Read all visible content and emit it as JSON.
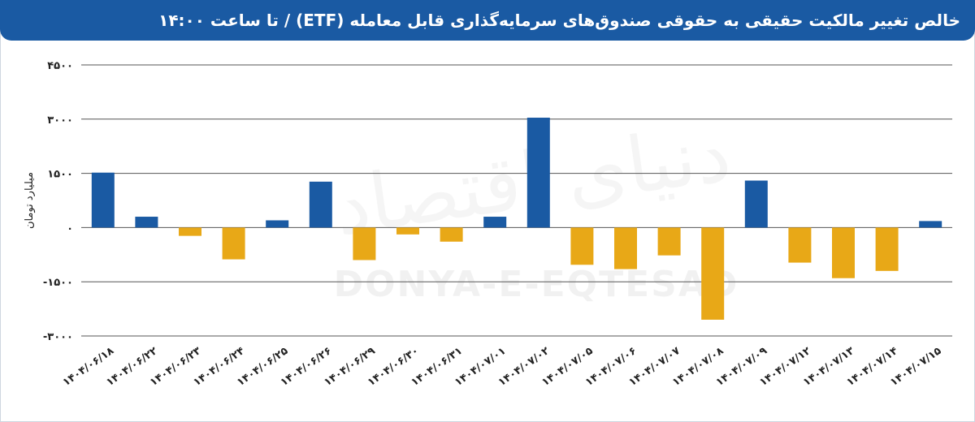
{
  "chart_data": {
    "type": "bar",
    "title": "خالص تغییر مالکیت حقیقی به حقوقی صندوق‌های سرمایه‌گذاری قابل معامله (ETF) / تا ساعت ۱۴:۰۰",
    "ylabel": "میلیارد تومان",
    "xlabel": "",
    "ylim": [
      -3000,
      4500
    ],
    "yticks": [
      {
        "value": 4500,
        "label": "۴۵۰۰"
      },
      {
        "value": 3000,
        "label": "۳۰۰۰"
      },
      {
        "value": 1500,
        "label": "۱۵۰۰"
      },
      {
        "value": 0,
        "label": "۰"
      },
      {
        "value": -1500,
        "label": "-۱۵۰۰"
      },
      {
        "value": -3000,
        "label": "-۳۰۰۰"
      }
    ],
    "grid": true,
    "categories": [
      "۱۴۰۴/۰۶/۱۸",
      "۱۴۰۴/۰۶/۲۲",
      "۱۴۰۴/۰۶/۲۳",
      "۱۴۰۴/۰۶/۲۴",
      "۱۴۰۴/۰۶/۲۵",
      "۱۴۰۴/۰۶/۲۶",
      "۱۴۰۴/۰۶/۲۹",
      "۱۴۰۴/۰۶/۳۰",
      "۱۴۰۴/۰۶/۳۱",
      "۱۴۰۴/۰۷/۰۱",
      "۱۴۰۴/۰۷/۰۲",
      "۱۴۰۴/۰۷/۰۵",
      "۱۴۰۴/۰۷/۰۶",
      "۱۴۰۴/۰۷/۰۷",
      "۱۴۰۴/۰۷/۰۸",
      "۱۴۰۴/۰۷/۰۹",
      "۱۴۰۴/۰۷/۱۲",
      "۱۴۰۴/۰۷/۱۳",
      "۱۴۰۴/۰۷/۱۴",
      "۱۴۰۴/۰۷/۱۵"
    ],
    "values": [
      1520,
      300,
      -230,
      -880,
      200,
      1270,
      -900,
      -190,
      -390,
      300,
      3040,
      -1030,
      -1150,
      -770,
      -2550,
      1300,
      -970,
      -1400,
      -1200,
      180
    ],
    "colors": {
      "positive": "#1a5aa3",
      "negative": "#e8a817"
    }
  },
  "watermark": {
    "script": "دنیای اقتصاد",
    "latin": "DONYA-E-EQTESAD"
  }
}
